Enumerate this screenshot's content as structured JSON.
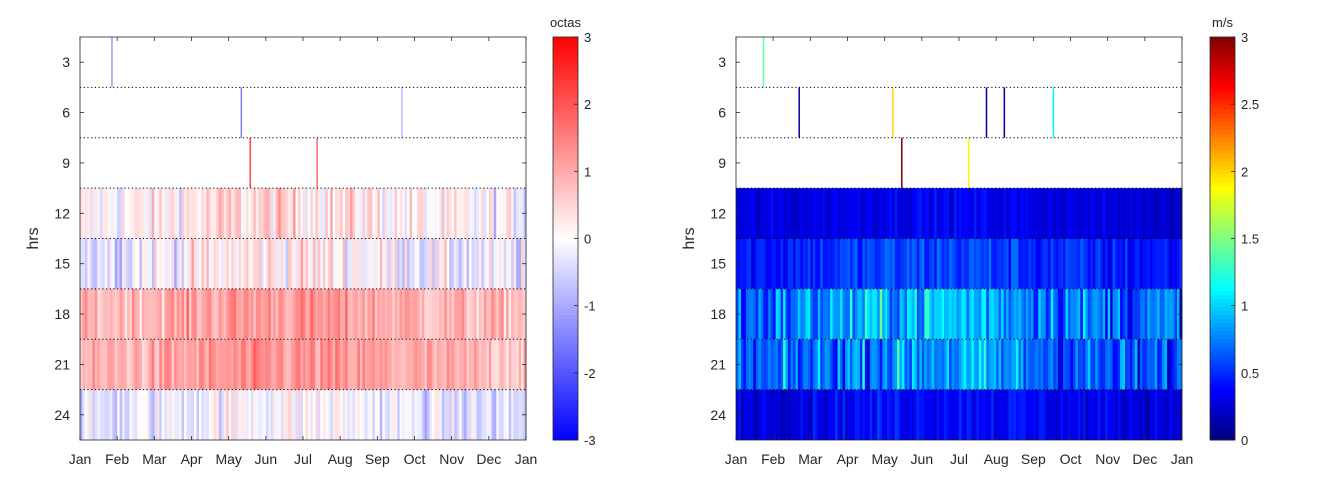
{
  "chart_data": [
    {
      "type": "heatmap",
      "title": "",
      "xlabel": "",
      "ylabel": "hrs",
      "x_ticks": [
        "Jan",
        "Feb",
        "Mar",
        "Apr",
        "May",
        "Jun",
        "Jul",
        "Aug",
        "Sep",
        "Oct",
        "Nov",
        "Dec",
        "Jan"
      ],
      "y_ticks": [
        3,
        6,
        9,
        12,
        15,
        18,
        21,
        24
      ],
      "ylim": [
        1.5,
        25.5
      ],
      "y_reversed": true,
      "colorbar": {
        "label": "octas",
        "range": [
          -3,
          3
        ],
        "ticks": [
          "3",
          "2",
          "1",
          "0",
          "-1",
          "-2",
          "-3"
        ],
        "colormap": "blue-white-red",
        "colors": [
          "#0000ff",
          "#ffffff",
          "#ff0000"
        ]
      },
      "bands": [
        {
          "hours": "1.5-4.5",
          "label": "3",
          "mean": 0,
          "spread": 0,
          "density": 0.0,
          "sparse": [
            [
              0.07,
              -1.2
            ]
          ]
        },
        {
          "hours": "4.5-7.5",
          "label": "6",
          "mean": 0,
          "spread": 0,
          "density": 0.0,
          "sparse": [
            [
              0.36,
              -1.5
            ],
            [
              0.72,
              -0.8
            ]
          ]
        },
        {
          "hours": "7.5-10.5",
          "label": "9",
          "mean": 0,
          "spread": 0,
          "density": 0.0,
          "sparse": [
            [
              0.38,
              2.2
            ],
            [
              0.53,
              1.8
            ]
          ]
        },
        {
          "hours": "10.5-13.5",
          "label": "12",
          "mean": 0.2,
          "spread": 0.9,
          "density": 1.0,
          "sparse": []
        },
        {
          "hours": "13.5-16.5",
          "label": "15",
          "mean": 0.0,
          "spread": 1.0,
          "density": 1.0,
          "sparse": []
        },
        {
          "hours": "16.5-19.5",
          "label": "18",
          "mean": 1.0,
          "spread": 0.7,
          "density": 1.0,
          "sparse": []
        },
        {
          "hours": "19.5-22.5",
          "label": "21",
          "mean": 1.0,
          "spread": 0.7,
          "density": 1.0,
          "sparse": []
        },
        {
          "hours": "22.5-25.5",
          "label": "24",
          "mean": -0.2,
          "spread": 0.8,
          "density": 1.0,
          "sparse": []
        }
      ]
    },
    {
      "type": "heatmap",
      "title": "",
      "xlabel": "",
      "ylabel": "hrs",
      "x_ticks": [
        "Jan",
        "Feb",
        "Mar",
        "Apr",
        "May",
        "Jun",
        "Jul",
        "Aug",
        "Sep",
        "Oct",
        "Nov",
        "Dec",
        "Jan"
      ],
      "y_ticks": [
        3,
        6,
        9,
        12,
        15,
        18,
        21,
        24
      ],
      "ylim": [
        1.5,
        25.5
      ],
      "y_reversed": true,
      "colorbar": {
        "label": "m/s",
        "range": [
          0,
          3
        ],
        "ticks": [
          "3",
          "2.5",
          "2",
          "1.5",
          "1",
          "0.5",
          "0"
        ],
        "colormap": "jet"
      },
      "bands": [
        {
          "hours": "1.5-4.5",
          "label": "3",
          "mean": 0,
          "spread": 0,
          "density": 0.0,
          "sparse": [
            [
              0.06,
              1.4
            ]
          ]
        },
        {
          "hours": "4.5-7.5",
          "label": "6",
          "mean": 0,
          "spread": 0,
          "density": 0.0,
          "sparse": [
            [
              0.14,
              0.1
            ],
            [
              0.35,
              2.0
            ],
            [
              0.56,
              0.1
            ],
            [
              0.6,
              0.1
            ],
            [
              0.71,
              1.1
            ]
          ]
        },
        {
          "hours": "7.5-10.5",
          "label": "9",
          "mean": 0,
          "spread": 0,
          "density": 0.0,
          "sparse": [
            [
              0.37,
              3.0
            ],
            [
              0.52,
              1.9
            ]
          ]
        },
        {
          "hours": "10.5-13.5",
          "label": "12",
          "mean": 0.3,
          "spread": 0.15,
          "density": 1.0,
          "sparse": []
        },
        {
          "hours": "13.5-16.5",
          "label": "15",
          "mean": 0.5,
          "spread": 0.25,
          "density": 1.0,
          "sparse": []
        },
        {
          "hours": "16.5-19.5",
          "label": "18",
          "mean": 0.8,
          "spread": 0.5,
          "density": 1.0,
          "sparse": []
        },
        {
          "hours": "19.5-22.5",
          "label": "21",
          "mean": 0.7,
          "spread": 0.5,
          "density": 1.0,
          "sparse": []
        },
        {
          "hours": "22.5-25.5",
          "label": "24",
          "mean": 0.35,
          "spread": 0.2,
          "density": 1.0,
          "sparse": []
        }
      ]
    }
  ]
}
